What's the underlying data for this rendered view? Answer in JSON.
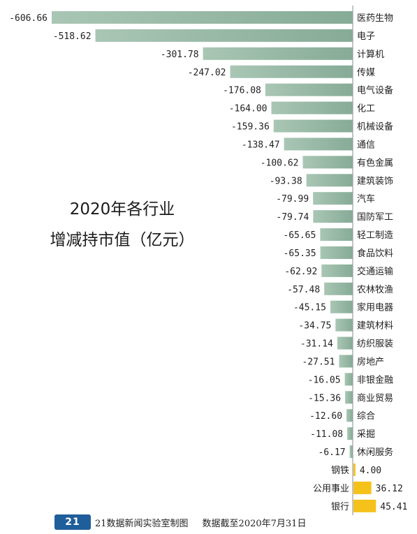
{
  "title": {
    "line1": "2020年各行业",
    "line2": "增减持市值（亿元）"
  },
  "footer": {
    "logo": "21",
    "credit": "21数据新闻实验室制图",
    "source": "数据截至2020年7月31日"
  },
  "colors": {
    "negative": "#86ab97",
    "negative_light": "#a9c6b4",
    "positive": "#f5c21b",
    "axis": "#888888",
    "text": "#222222"
  },
  "chart_data": {
    "type": "bar",
    "orientation": "horizontal",
    "title": "2020年各行业增减持市值（亿元）",
    "categories": [
      "医药生物",
      "电子",
      "计算机",
      "传媒",
      "电气设备",
      "化工",
      "机械设备",
      "通信",
      "有色金属",
      "建筑装饰",
      "汽车",
      "国防军工",
      "轻工制造",
      "食品饮料",
      "交通运输",
      "农林牧渔",
      "家用电器",
      "建筑材料",
      "纺织服装",
      "房地产",
      "非银金融",
      "商业贸易",
      "综合",
      "采掘",
      "休闲服务",
      "钢铁",
      "公用事业",
      "银行"
    ],
    "values": [
      -606.66,
      -518.62,
      -301.78,
      -247.02,
      -176.08,
      -164.0,
      -159.36,
      -138.47,
      -100.62,
      -93.38,
      -79.99,
      -79.74,
      -65.65,
      -65.35,
      -62.92,
      -57.48,
      -45.15,
      -34.75,
      -31.14,
      -27.51,
      -16.05,
      -15.36,
      -12.6,
      -11.08,
      -6.17,
      4.0,
      36.12,
      45.41
    ],
    "value_labels": [
      "-606.66",
      "-518.62",
      "-301.78",
      "-247.02",
      "-176.08",
      "-164.00",
      "-159.36",
      "-138.47",
      "-100.62",
      "-93.38",
      "-79.99",
      "-79.74",
      "-65.65",
      "-65.35",
      "-62.92",
      "-57.48",
      "-45.15",
      "-34.75",
      "-31.14",
      "-27.51",
      "-16.05",
      "-15.36",
      "-12.60",
      "-11.08",
      "-6.17",
      "4.00",
      "36.12",
      "45.41"
    ],
    "xlabel": "",
    "ylabel": "",
    "grid": false,
    "legend": "none"
  }
}
